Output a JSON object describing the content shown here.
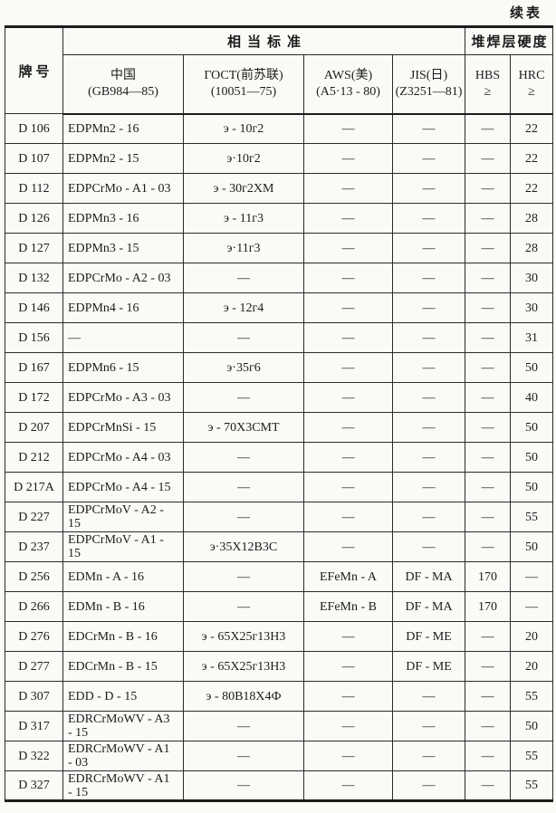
{
  "page": {
    "continued_label": "续表"
  },
  "colors": {
    "paper": "#fbfaf7",
    "ink": "#1c1c1c",
    "border": "#2b2b2b"
  },
  "table": {
    "header": {
      "grade_label": "牌号",
      "standards_group_label": "相当标准",
      "hardness_group_label": "堆焊层硬度",
      "sub_columns": [
        {
          "key": "china",
          "line1": "中国",
          "line2": "(GB984—85)"
        },
        {
          "key": "gost",
          "line1": "ГОСТ(前苏联)",
          "line2": "(10051—75)"
        },
        {
          "key": "aws",
          "line1": "AWS(美)",
          "line2": "(A5·13 - 80)"
        },
        {
          "key": "jis",
          "line1": "JIS(日)",
          "line2": "(Z3251—81)"
        },
        {
          "key": "hbs",
          "line1": "HBS",
          "line2": "≥"
        },
        {
          "key": "hrc",
          "line1": "HRC",
          "line2": "≥"
        }
      ]
    },
    "column_keys": [
      "grade",
      "china",
      "gost",
      "aws",
      "jis",
      "hbs",
      "hrc"
    ],
    "rows": [
      [
        "D 106",
        "EDPMn2 - 16",
        "э - 10г2",
        "—",
        "—",
        "—",
        "22"
      ],
      [
        "D 107",
        "EDPMn2 - 15",
        "э·10г2",
        "—",
        "—",
        "—",
        "22"
      ],
      [
        "D 112",
        "EDPCrMo - A1 - 03",
        "э - 30г2XM",
        "—",
        "—",
        "—",
        "22"
      ],
      [
        "D 126",
        "EDPMn3 - 16",
        "э - 11г3",
        "—",
        "—",
        "—",
        "28"
      ],
      [
        "D 127",
        "EDPMn3 - 15",
        "э·11г3",
        "—",
        "—",
        "—",
        "28"
      ],
      [
        "D 132",
        "EDPCrMo - A2 - 03",
        "—",
        "—",
        "—",
        "—",
        "30"
      ],
      [
        "D 146",
        "EDPMn4 - 16",
        "э - 12г4",
        "—",
        "—",
        "—",
        "30"
      ],
      [
        "D 156",
        "—",
        "—",
        "—",
        "—",
        "—",
        "31"
      ],
      [
        "D 167",
        "EDPMn6 - 15",
        "э·35г6",
        "—",
        "—",
        "—",
        "50"
      ],
      [
        "D 172",
        "EDPCrMo - A3 - 03",
        "—",
        "—",
        "—",
        "—",
        "40"
      ],
      [
        "D 207",
        "EDPCrMnSi - 15",
        "э - 70X3CMT",
        "—",
        "—",
        "—",
        "50"
      ],
      [
        "D 212",
        "EDPCrMo - A4 - 03",
        "—",
        "—",
        "—",
        "—",
        "50"
      ],
      [
        "D 217A",
        "EDPCrMo - A4 - 15",
        "—",
        "—",
        "—",
        "—",
        "50"
      ],
      [
        "D 227",
        "EDPCrMoV - A2 - 15",
        "—",
        "—",
        "—",
        "—",
        "55"
      ],
      [
        "D 237",
        "EDPCrMoV - A1 - 15",
        "э·35X12B3C",
        "—",
        "—",
        "—",
        "50"
      ],
      [
        "D 256",
        "EDMn - A - 16",
        "—",
        "EFeMn - A",
        "DF - MA",
        "170",
        "—"
      ],
      [
        "D 266",
        "EDMn - B - 16",
        "—",
        "EFeMn - B",
        "DF - MA",
        "170",
        "—"
      ],
      [
        "D 276",
        "EDCrMn - B - 16",
        "э - 65X25г13H3",
        "—",
        "DF - ME",
        "—",
        "20"
      ],
      [
        "D 277",
        "EDCrMn - B - 15",
        "э - 65X25г13H3",
        "—",
        "DF - ME",
        "—",
        "20"
      ],
      [
        "D 307",
        "EDD - D - 15",
        "э - 80B18X4Ф",
        "—",
        "—",
        "—",
        "55"
      ],
      [
        "D 317",
        "EDRCrMoWV - A3 - 15",
        "—",
        "—",
        "—",
        "—",
        "50"
      ],
      [
        "D 322",
        "EDRCrMoWV - A1 - 03",
        "—",
        "—",
        "—",
        "—",
        "55"
      ],
      [
        "D 327",
        "EDRCrMoWV - A1 - 15",
        "—",
        "—",
        "—",
        "—",
        "55"
      ]
    ]
  }
}
